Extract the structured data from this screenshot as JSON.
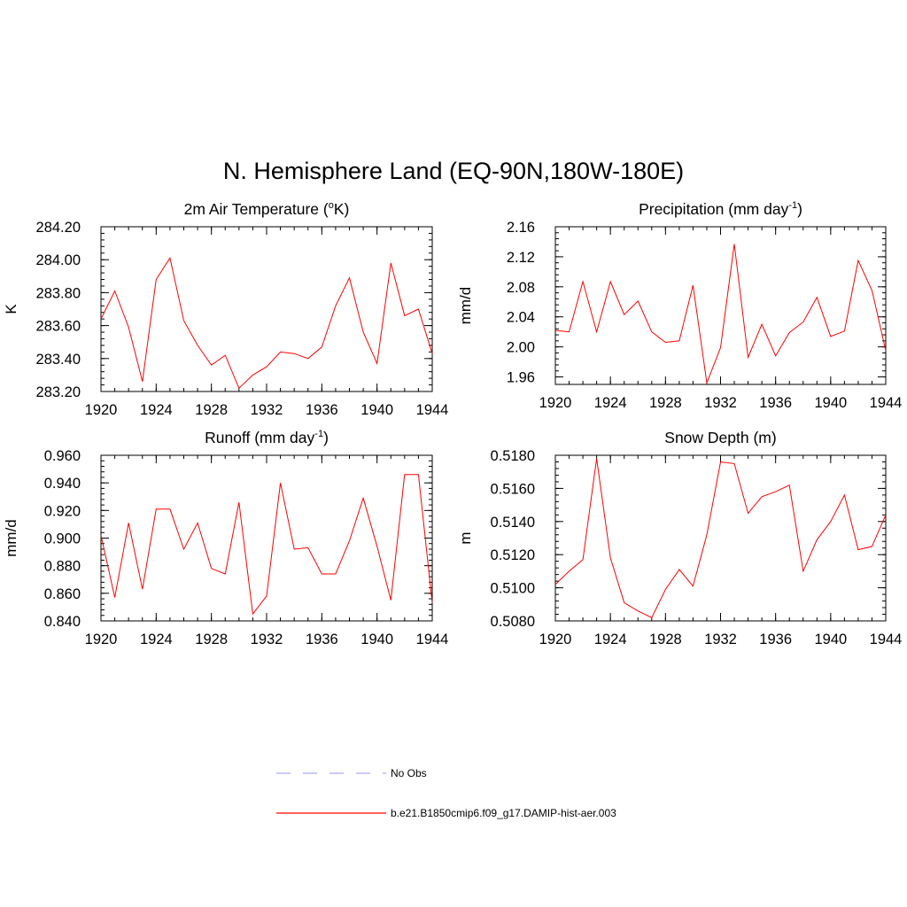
{
  "figure": {
    "title": "N. Hemisphere Land (EQ-90N,180W-180E)",
    "legend": [
      {
        "label": "No Obs",
        "color": "#aaaaff",
        "style": "dashed"
      },
      {
        "label": "b.e21.B1850cmip6.f09_g17.DAMIP-hist-aer.003",
        "color": "#ff0000",
        "style": "solid"
      }
    ]
  },
  "chart_data": [
    {
      "type": "line",
      "title": "2m Air Temperature (",
      "title_sup": "o",
      "title_tail": "K)",
      "ylabel": "K",
      "xlim": [
        1920,
        1944
      ],
      "ylim": [
        283.2,
        284.2
      ],
      "xticks": [
        1920,
        1924,
        1928,
        1932,
        1936,
        1940,
        1944
      ],
      "yticks": [
        283.2,
        283.4,
        283.6,
        283.8,
        284.0,
        284.2
      ],
      "ytick_labels": [
        "283.20",
        "283.40",
        "283.60",
        "283.80",
        "284.00",
        "284.20"
      ],
      "x": [
        1920,
        1921,
        1922,
        1923,
        1924,
        1925,
        1926,
        1927,
        1928,
        1929,
        1930,
        1931,
        1932,
        1933,
        1934,
        1935,
        1936,
        1937,
        1938,
        1939,
        1940,
        1941,
        1942,
        1943,
        1944
      ],
      "series": [
        {
          "color": "#ff0000",
          "values": [
            283.64,
            283.81,
            283.59,
            283.26,
            283.88,
            284.01,
            283.63,
            283.48,
            283.36,
            283.42,
            283.22,
            283.3,
            283.35,
            283.44,
            283.43,
            283.4,
            283.47,
            283.72,
            283.89,
            283.56,
            283.37,
            283.98,
            283.66,
            283.7,
            283.43
          ]
        }
      ]
    },
    {
      "type": "line",
      "title": "Precipitation (mm day",
      "title_sup": "-1",
      "title_tail": ")",
      "ylabel": "mm/d",
      "xlim": [
        1920,
        1944
      ],
      "ylim": [
        1.95,
        2.16
      ],
      "xticks": [
        1920,
        1924,
        1928,
        1932,
        1936,
        1940,
        1944
      ],
      "yticks": [
        1.96,
        2.0,
        2.04,
        2.08,
        2.12,
        2.16
      ],
      "ytick_labels": [
        "1.96",
        "2.00",
        "2.04",
        "2.08",
        "2.12",
        "2.16"
      ],
      "x": [
        1920,
        1921,
        1922,
        1923,
        1924,
        1925,
        1926,
        1927,
        1928,
        1929,
        1930,
        1931,
        1932,
        1933,
        1934,
        1935,
        1936,
        1937,
        1938,
        1939,
        1940,
        1941,
        1942,
        1943,
        1944
      ],
      "series": [
        {
          "color": "#ff0000",
          "values": [
            2.022,
            2.02,
            2.087,
            2.02,
            2.087,
            2.043,
            2.061,
            2.02,
            2.006,
            2.008,
            2.082,
            1.952,
            1.999,
            2.137,
            1.986,
            2.03,
            1.988,
            2.019,
            2.033,
            2.066,
            2.014,
            2.021,
            2.115,
            2.075,
            1.995
          ]
        }
      ]
    },
    {
      "type": "line",
      "title": "Runoff (mm day",
      "title_sup": "-1",
      "title_tail": ")",
      "ylabel": "mm/d",
      "xlim": [
        1920,
        1944
      ],
      "ylim": [
        0.84,
        0.96
      ],
      "xticks": [
        1920,
        1924,
        1928,
        1932,
        1936,
        1940,
        1944
      ],
      "yticks": [
        0.84,
        0.86,
        0.88,
        0.9,
        0.92,
        0.94,
        0.96
      ],
      "ytick_labels": [
        "0.840",
        "0.860",
        "0.880",
        "0.900",
        "0.920",
        "0.940",
        "0.960"
      ],
      "x": [
        1920,
        1921,
        1922,
        1923,
        1924,
        1925,
        1926,
        1927,
        1928,
        1929,
        1930,
        1931,
        1932,
        1933,
        1934,
        1935,
        1936,
        1937,
        1938,
        1939,
        1940,
        1941,
        1942,
        1943,
        1944
      ],
      "series": [
        {
          "color": "#ff0000",
          "values": [
            0.902,
            0.857,
            0.911,
            0.863,
            0.921,
            0.921,
            0.892,
            0.911,
            0.878,
            0.874,
            0.926,
            0.845,
            0.858,
            0.94,
            0.892,
            0.893,
            0.874,
            0.874,
            0.898,
            0.929,
            0.894,
            0.855,
            0.946,
            0.946,
            0.853
          ]
        }
      ]
    },
    {
      "type": "line",
      "title": "Snow Depth (m)",
      "title_sup": "",
      "title_tail": "",
      "ylabel": "m",
      "xlim": [
        1920,
        1944
      ],
      "ylim": [
        0.508,
        0.518
      ],
      "xticks": [
        1920,
        1924,
        1928,
        1932,
        1936,
        1940,
        1944
      ],
      "yticks": [
        0.508,
        0.51,
        0.512,
        0.514,
        0.516,
        0.518
      ],
      "ytick_labels": [
        "0.5080",
        "0.5100",
        "0.5120",
        "0.5140",
        "0.5160",
        "0.5180"
      ],
      "x": [
        1920,
        1921,
        1922,
        1923,
        1924,
        1925,
        1926,
        1927,
        1928,
        1929,
        1930,
        1931,
        1932,
        1933,
        1934,
        1935,
        1936,
        1937,
        1938,
        1939,
        1940,
        1941,
        1942,
        1943,
        1944
      ],
      "series": [
        {
          "color": "#ff0000",
          "values": [
            0.5102,
            0.511,
            0.5117,
            0.5178,
            0.5118,
            0.5091,
            0.5086,
            0.5082,
            0.5099,
            0.5111,
            0.5101,
            0.5132,
            0.5176,
            0.5175,
            0.5145,
            0.5155,
            0.5158,
            0.5162,
            0.511,
            0.5129,
            0.514,
            0.5156,
            0.5123,
            0.5125,
            0.5144
          ]
        }
      ]
    }
  ]
}
